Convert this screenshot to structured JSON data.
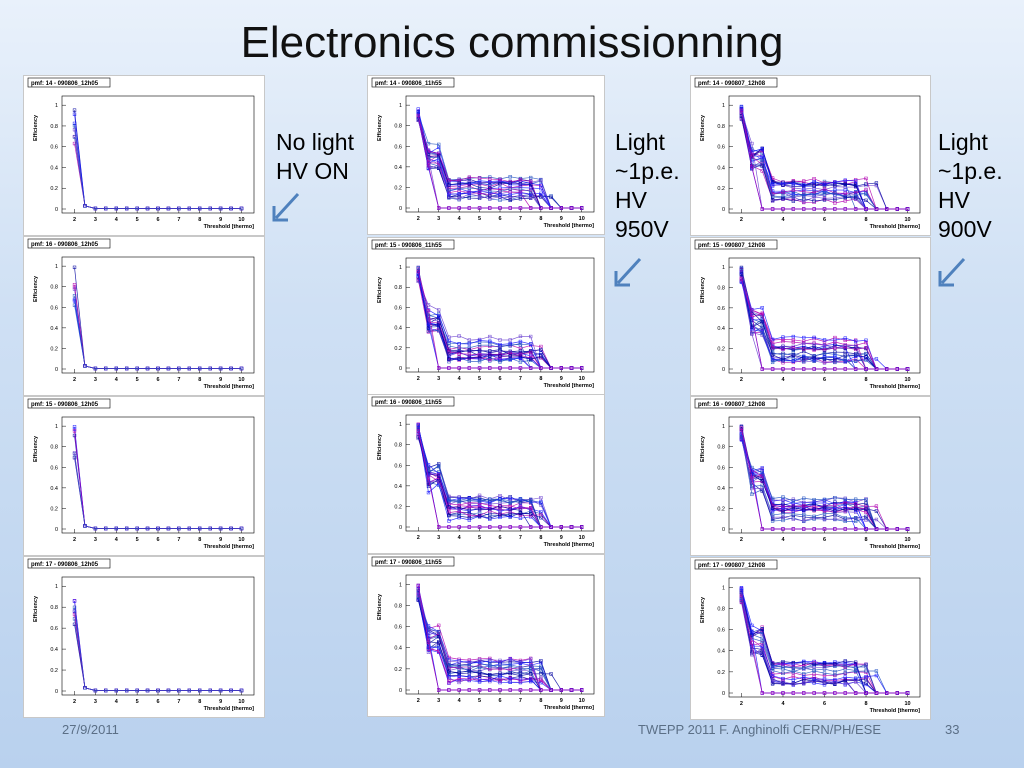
{
  "slide": {
    "title": "Electronics commissionning",
    "footer_date": "27/9/2011",
    "footer_text": "TWEPP 2011 F. Anghinolfi CERN/PH/ESE",
    "slide_number": "33"
  },
  "annotations": [
    {
      "lines": [
        "No light",
        "HV ON"
      ]
    },
    {
      "lines": [
        "Light",
        "~1p.e.",
        "HV",
        "950V"
      ]
    },
    {
      "lines": [
        "Light",
        "~1p.e.",
        "HV",
        "900V"
      ]
    }
  ],
  "colors": {
    "arrow": "#4f81bd",
    "trace_primary": "#1a1aff",
    "trace_secondary": "#b000b0"
  },
  "plot_axis": {
    "ylabel": "Efficiency",
    "xlabel": "Threshold [thermo]",
    "yticks": [
      "0",
      "0.2",
      "0.4",
      "0.6",
      "0.8",
      "1"
    ],
    "xticks_a": [
      "2",
      "3",
      "4",
      "5",
      "6",
      "7",
      "8",
      "9",
      "10"
    ],
    "xticks_b": [
      "2",
      "4",
      "6",
      "8",
      "10"
    ]
  },
  "chart_data": [
    {
      "type": "line",
      "title": "pmf: 14 - 090806_12h05",
      "xticks": "a",
      "shape": "dead"
    },
    {
      "type": "line",
      "title": "pmf: 16 - 090806_12h05",
      "xticks": "a",
      "shape": "dead"
    },
    {
      "type": "line",
      "title": "pmf: 15 - 090806_12h05",
      "xticks": "a",
      "shape": "dead"
    },
    {
      "type": "line",
      "title": "pmf: 17 - 090806_12h05",
      "xticks": "a",
      "shape": "dead"
    },
    {
      "type": "line",
      "title": "pmf: 14 - 090806_11h55",
      "xticks": "a",
      "shape": "light"
    },
    {
      "type": "line",
      "title": "pmf: 15 - 090806_11h55",
      "xticks": "a",
      "shape": "light"
    },
    {
      "type": "line",
      "title": "pmf: 16 - 090806_11h55",
      "xticks": "a",
      "shape": "light"
    },
    {
      "type": "line",
      "title": "pmf: 17 - 090806_11h55",
      "xticks": "a",
      "shape": "light"
    },
    {
      "type": "line",
      "title": "pmf: 14 - 090807_12h08",
      "xticks": "b",
      "shape": "light"
    },
    {
      "type": "line",
      "title": "pmf: 15 - 090807_12h08",
      "xticks": "b",
      "shape": "light"
    },
    {
      "type": "line",
      "title": "pmf: 16 - 090807_12h08",
      "xticks": "b",
      "shape": "light"
    },
    {
      "type": "line",
      "title": "pmf: 17 - 090807_12h08",
      "xticks": "b",
      "shape": "light"
    }
  ]
}
